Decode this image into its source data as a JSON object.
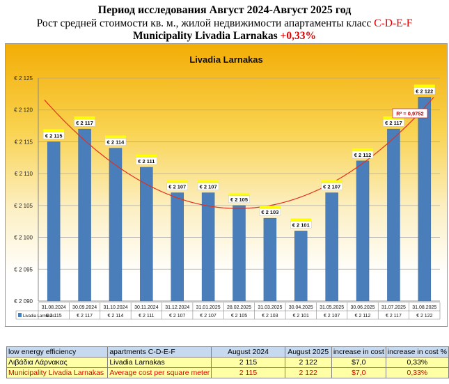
{
  "header": {
    "line1": "Период исследования Август 2024-Август 2025 год",
    "line2_main": "Рост средней стоимости кв. м., жилой недвижимости апартаменты класс ",
    "line2_class": "C-D-E-F",
    "line3_main": "Municipality Livadia Larnakas ",
    "line3_pct": "+0,33%"
  },
  "chart_data": {
    "type": "bar",
    "title": "Livadia Larnakas",
    "categories": [
      "31.08.2024",
      "30.09.2024",
      "31.10.2024",
      "30.11.2024",
      "31.12.2024",
      "31.01.2025",
      "28.02.2025",
      "31.03.2025",
      "30.04.2025",
      "31.05.2025",
      "30.06.2025",
      "31.07.2025",
      "31.08.2025"
    ],
    "series": [
      {
        "name": "Livadia Larnakas",
        "values": [
          2115,
          2117,
          2114,
          2111,
          2107,
          2107,
          2105,
          2103,
          2101,
          2107,
          2112,
          2117,
          2122
        ]
      }
    ],
    "data_labels": [
      "€ 2 115",
      "€ 2 117",
      "€ 2 114",
      "€ 2 111",
      "€ 2 107",
      "€ 2 107",
      "€ 2 105",
      "€ 2 103",
      "€ 2 101",
      "€ 2 107",
      "€ 2 112",
      "€ 2 117",
      "€ 2 122"
    ],
    "yticks": [
      2090,
      2095,
      2100,
      2105,
      2110,
      2115,
      2120,
      2125
    ],
    "ytick_labels": [
      "€ 2 090",
      "€ 2 095",
      "€ 2 100",
      "€ 2 105",
      "€ 2 110",
      "€ 2 115",
      "€ 2 120",
      "€ 2 125"
    ],
    "ylim": [
      2090,
      2125
    ],
    "trendline": {
      "type": "polynomial",
      "r2_label": "R² = 0,9752"
    },
    "grid": true,
    "legend": "data-table",
    "colors": {
      "bar": "#4a7ebb",
      "trend": "#e0301e",
      "label_tag": "#ffff00"
    }
  },
  "summary_table": {
    "header": [
      "low energy efficiency",
      "apartments C-D-E-F",
      "August 2024",
      "August 2025",
      "increase in cost",
      "increase in cost %"
    ],
    "rows": [
      [
        "Λιβάδια Λάρνακας",
        "Livadia Larnakas",
        "2 115",
        "2 122",
        "$7,0",
        "0,33%"
      ],
      [
        "Municipality Livadia Larnakas",
        "Average cost per square meter",
        "2 115",
        "2 122",
        "$7,0",
        "0,33%"
      ]
    ]
  }
}
